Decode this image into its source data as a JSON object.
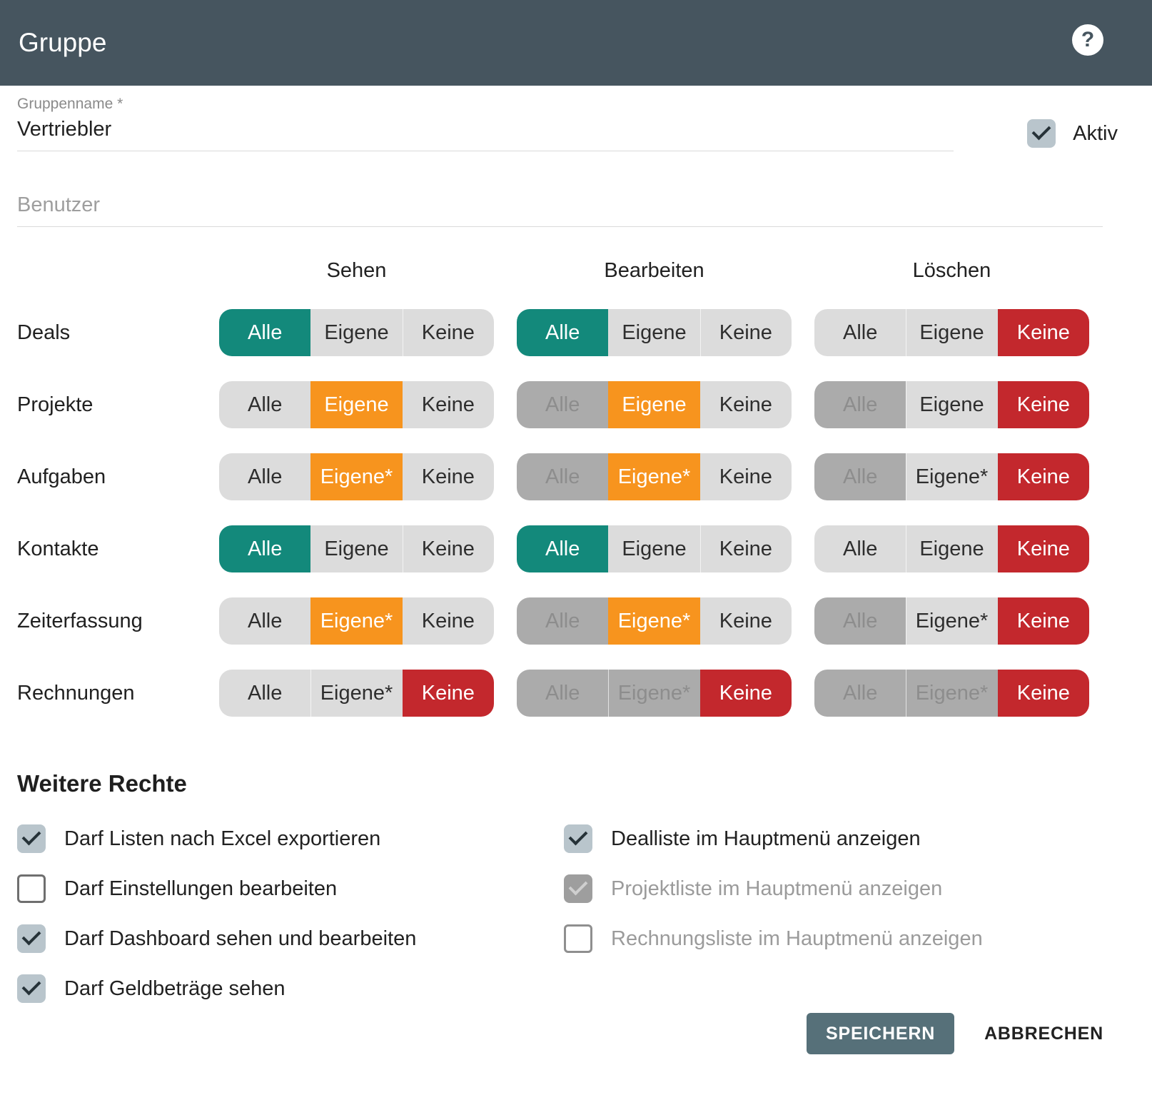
{
  "header": {
    "title": "Gruppe",
    "help_glyph": "?"
  },
  "form": {
    "group_name": {
      "label": "Gruppenname *",
      "value": "Vertriebler"
    },
    "active": {
      "label": "Aktiv",
      "checked": true
    },
    "users": {
      "placeholder": "Benutzer",
      "value": ""
    }
  },
  "matrix": {
    "columns": [
      "Sehen",
      "Bearbeiten",
      "Löschen"
    ],
    "rows": [
      {
        "label": "Deals",
        "cells": [
          {
            "options": [
              {
                "label": "Alle",
                "state": "selected"
              },
              {
                "label": "Eigene",
                "state": "normal"
              },
              {
                "label": "Keine",
                "state": "normal"
              }
            ]
          },
          {
            "options": [
              {
                "label": "Alle",
                "state": "selected"
              },
              {
                "label": "Eigene",
                "state": "normal"
              },
              {
                "label": "Keine",
                "state": "normal"
              }
            ]
          },
          {
            "options": [
              {
                "label": "Alle",
                "state": "normal"
              },
              {
                "label": "Eigene",
                "state": "normal"
              },
              {
                "label": "Keine",
                "state": "selected"
              }
            ]
          }
        ]
      },
      {
        "label": "Projekte",
        "cells": [
          {
            "options": [
              {
                "label": "Alle",
                "state": "normal"
              },
              {
                "label": "Eigene",
                "state": "selected"
              },
              {
                "label": "Keine",
                "state": "normal"
              }
            ]
          },
          {
            "options": [
              {
                "label": "Alle",
                "state": "disabled"
              },
              {
                "label": "Eigene",
                "state": "selected"
              },
              {
                "label": "Keine",
                "state": "normal"
              }
            ]
          },
          {
            "options": [
              {
                "label": "Alle",
                "state": "disabled"
              },
              {
                "label": "Eigene",
                "state": "normal"
              },
              {
                "label": "Keine",
                "state": "selected"
              }
            ]
          }
        ]
      },
      {
        "label": "Aufgaben",
        "cells": [
          {
            "options": [
              {
                "label": "Alle",
                "state": "normal"
              },
              {
                "label": "Eigene*",
                "state": "selected"
              },
              {
                "label": "Keine",
                "state": "normal"
              }
            ]
          },
          {
            "options": [
              {
                "label": "Alle",
                "state": "disabled"
              },
              {
                "label": "Eigene*",
                "state": "selected"
              },
              {
                "label": "Keine",
                "state": "normal"
              }
            ]
          },
          {
            "options": [
              {
                "label": "Alle",
                "state": "disabled"
              },
              {
                "label": "Eigene*",
                "state": "normal"
              },
              {
                "label": "Keine",
                "state": "selected"
              }
            ]
          }
        ]
      },
      {
        "label": "Kontakte",
        "cells": [
          {
            "options": [
              {
                "label": "Alle",
                "state": "selected"
              },
              {
                "label": "Eigene",
                "state": "normal"
              },
              {
                "label": "Keine",
                "state": "normal"
              }
            ]
          },
          {
            "options": [
              {
                "label": "Alle",
                "state": "selected"
              },
              {
                "label": "Eigene",
                "state": "normal"
              },
              {
                "label": "Keine",
                "state": "normal"
              }
            ]
          },
          {
            "options": [
              {
                "label": "Alle",
                "state": "normal"
              },
              {
                "label": "Eigene",
                "state": "normal"
              },
              {
                "label": "Keine",
                "state": "selected"
              }
            ]
          }
        ]
      },
      {
        "label": "Zeiterfassung",
        "cells": [
          {
            "options": [
              {
                "label": "Alle",
                "state": "normal"
              },
              {
                "label": "Eigene*",
                "state": "selected"
              },
              {
                "label": "Keine",
                "state": "normal"
              }
            ]
          },
          {
            "options": [
              {
                "label": "Alle",
                "state": "disabled"
              },
              {
                "label": "Eigene*",
                "state": "selected"
              },
              {
                "label": "Keine",
                "state": "normal"
              }
            ]
          },
          {
            "options": [
              {
                "label": "Alle",
                "state": "disabled"
              },
              {
                "label": "Eigene*",
                "state": "normal"
              },
              {
                "label": "Keine",
                "state": "selected"
              }
            ]
          }
        ]
      },
      {
        "label": "Rechnungen",
        "cells": [
          {
            "options": [
              {
                "label": "Alle",
                "state": "normal"
              },
              {
                "label": "Eigene*",
                "state": "normal"
              },
              {
                "label": "Keine",
                "state": "selected"
              }
            ]
          },
          {
            "options": [
              {
                "label": "Alle",
                "state": "disabled"
              },
              {
                "label": "Eigene*",
                "state": "disabled"
              },
              {
                "label": "Keine",
                "state": "selected"
              }
            ]
          },
          {
            "options": [
              {
                "label": "Alle",
                "state": "disabled"
              },
              {
                "label": "Eigene*",
                "state": "disabled"
              },
              {
                "label": "Keine",
                "state": "selected"
              }
            ]
          }
        ]
      }
    ]
  },
  "additional_rights": {
    "title": "Weitere Rechte",
    "left": [
      {
        "label": "Darf Listen nach Excel exportieren",
        "checked": true,
        "disabled": false
      },
      {
        "label": "Darf Einstellungen bearbeiten",
        "checked": false,
        "disabled": false
      },
      {
        "label": "Darf Dashboard sehen und bearbeiten",
        "checked": true,
        "disabled": false
      },
      {
        "label": "Darf Geldbeträge sehen",
        "checked": true,
        "disabled": false
      }
    ],
    "right": [
      {
        "label": "Dealliste im Hauptmenü anzeigen",
        "checked": true,
        "disabled": false
      },
      {
        "label": "Projektliste im Hauptmenü anzeigen",
        "checked": true,
        "disabled": true
      },
      {
        "label": "Rechnungsliste im Hauptmenü anzeigen",
        "checked": false,
        "disabled": true
      }
    ]
  },
  "footer": {
    "save_label": "SPEICHERN",
    "cancel_label": "ABBRECHEN"
  },
  "colors": {
    "teal": "#13897B",
    "orange": "#F7941E",
    "red": "#C3282D",
    "slate": "#46555F",
    "button": "#567079",
    "checkbox": "#B9C5CC"
  }
}
